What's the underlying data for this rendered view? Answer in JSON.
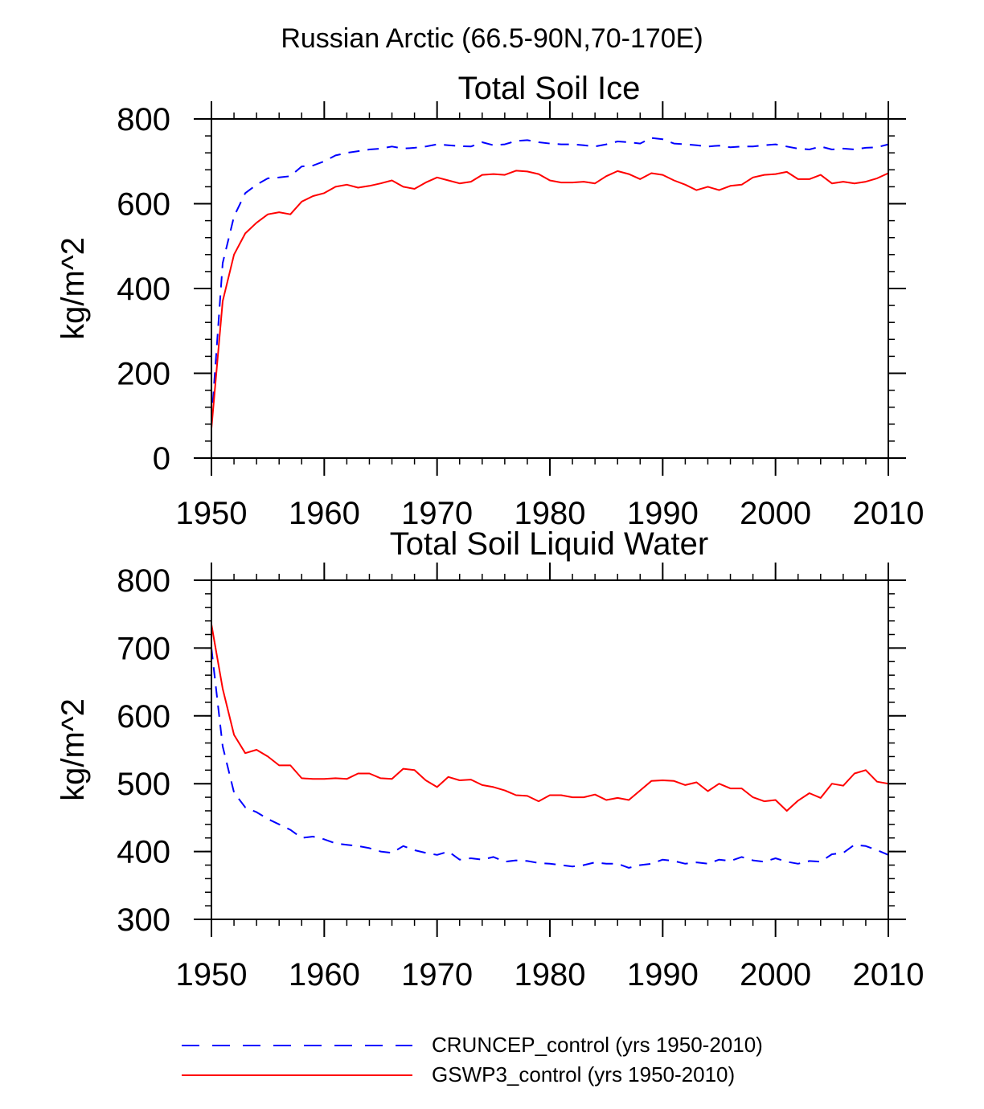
{
  "figure": {
    "title": "Russian Arctic (66.5-90N,70-170E)"
  },
  "legend": [
    {
      "label": "CRUNCEP_control (yrs 1950-2010)",
      "color": "#0000ff",
      "dash": "dashed"
    },
    {
      "label": "GSWP3_control (yrs 1950-2010)",
      "color": "#ff0000",
      "dash": "solid"
    }
  ],
  "chart_data": [
    {
      "type": "line",
      "title": "Total Soil Ice",
      "xlabel": "",
      "ylabel": "kg/m^2",
      "xlim": [
        1950,
        2010
      ],
      "ylim": [
        0,
        800
      ],
      "xticks": [
        1950,
        1960,
        1970,
        1980,
        1990,
        2000,
        2010
      ],
      "yticks": [
        0,
        200,
        400,
        600,
        800
      ],
      "x": [
        1950,
        1951,
        1952,
        1953,
        1954,
        1955,
        1956,
        1957,
        1958,
        1959,
        1960,
        1961,
        1962,
        1963,
        1964,
        1965,
        1966,
        1967,
        1968,
        1969,
        1970,
        1971,
        1972,
        1973,
        1974,
        1975,
        1976,
        1977,
        1978,
        1979,
        1980,
        1981,
        1982,
        1983,
        1984,
        1985,
        1986,
        1987,
        1988,
        1989,
        1990,
        1991,
        1992,
        1993,
        1994,
        1995,
        1996,
        1997,
        1998,
        1999,
        2000,
        2001,
        2002,
        2003,
        2004,
        2005,
        2006,
        2007,
        2008,
        2009,
        2010
      ],
      "series": [
        {
          "name": "CRUNCEP_control (yrs 1950-2010)",
          "color": "#0000ff",
          "style": "dashed",
          "values": [
            85,
            460,
            570,
            625,
            645,
            660,
            662,
            665,
            688,
            690,
            700,
            714,
            720,
            724,
            728,
            730,
            735,
            730,
            732,
            735,
            740,
            738,
            736,
            735,
            745,
            738,
            740,
            748,
            750,
            745,
            742,
            740,
            740,
            738,
            735,
            740,
            747,
            745,
            742,
            755,
            752,
            742,
            740,
            738,
            735,
            737,
            733,
            735,
            735,
            738,
            740,
            735,
            730,
            728,
            735,
            728,
            730,
            728,
            732,
            733,
            740
          ]
        },
        {
          "name": "GSWP3_control (yrs 1950-2010)",
          "color": "#ff0000",
          "style": "solid",
          "values": [
            70,
            370,
            480,
            530,
            555,
            575,
            580,
            575,
            605,
            618,
            625,
            640,
            645,
            638,
            642,
            648,
            655,
            640,
            635,
            650,
            662,
            655,
            648,
            652,
            668,
            670,
            668,
            678,
            676,
            670,
            655,
            650,
            650,
            652,
            648,
            665,
            677,
            670,
            658,
            672,
            668,
            655,
            645,
            632,
            640,
            632,
            642,
            645,
            662,
            668,
            670,
            675,
            658,
            658,
            668,
            648,
            652,
            648,
            652,
            660,
            672
          ]
        }
      ]
    },
    {
      "type": "line",
      "title": "Total Soil Liquid Water",
      "xlabel": "",
      "ylabel": "kg/m^2",
      "xlim": [
        1950,
        2010
      ],
      "ylim": [
        300,
        800
      ],
      "xticks": [
        1950,
        1960,
        1970,
        1980,
        1990,
        2000,
        2010
      ],
      "yticks": [
        300,
        400,
        500,
        600,
        700,
        800
      ],
      "x": [
        1950,
        1951,
        1952,
        1953,
        1954,
        1955,
        1956,
        1957,
        1958,
        1959,
        1960,
        1961,
        1962,
        1963,
        1964,
        1965,
        1966,
        1967,
        1968,
        1969,
        1970,
        1971,
        1972,
        1973,
        1974,
        1975,
        1976,
        1977,
        1978,
        1979,
        1980,
        1981,
        1982,
        1983,
        1984,
        1985,
        1986,
        1987,
        1988,
        1989,
        1990,
        1991,
        1992,
        1993,
        1994,
        1995,
        1996,
        1997,
        1998,
        1999,
        2000,
        2001,
        2002,
        2003,
        2004,
        2005,
        2006,
        2007,
        2008,
        2009,
        2010
      ],
      "series": [
        {
          "name": "CRUNCEP_control (yrs 1950-2010)",
          "color": "#0000ff",
          "style": "dashed",
          "values": [
            700,
            555,
            487,
            465,
            458,
            448,
            440,
            432,
            420,
            422,
            418,
            412,
            410,
            408,
            405,
            400,
            398,
            408,
            402,
            398,
            395,
            400,
            388,
            390,
            388,
            392,
            385,
            387,
            386,
            383,
            382,
            380,
            378,
            380,
            384,
            382,
            382,
            376,
            380,
            382,
            388,
            386,
            382,
            384,
            382,
            388,
            386,
            392,
            387,
            385,
            390,
            385,
            382,
            386,
            385,
            396,
            398,
            410,
            408,
            402,
            395
          ]
        },
        {
          "name": "GSWP3_control (yrs 1950-2010)",
          "color": "#ff0000",
          "style": "solid",
          "values": [
            735,
            640,
            572,
            545,
            550,
            540,
            527,
            527,
            508,
            507,
            507,
            508,
            507,
            515,
            515,
            508,
            507,
            522,
            520,
            505,
            495,
            510,
            505,
            506,
            498,
            495,
            490,
            483,
            482,
            474,
            483,
            483,
            480,
            480,
            484,
            476,
            479,
            476,
            490,
            504,
            505,
            504,
            498,
            502,
            489,
            500,
            493,
            493,
            480,
            474,
            476,
            460,
            475,
            486,
            479,
            500,
            497,
            515,
            520,
            503,
            500
          ]
        }
      ]
    }
  ]
}
